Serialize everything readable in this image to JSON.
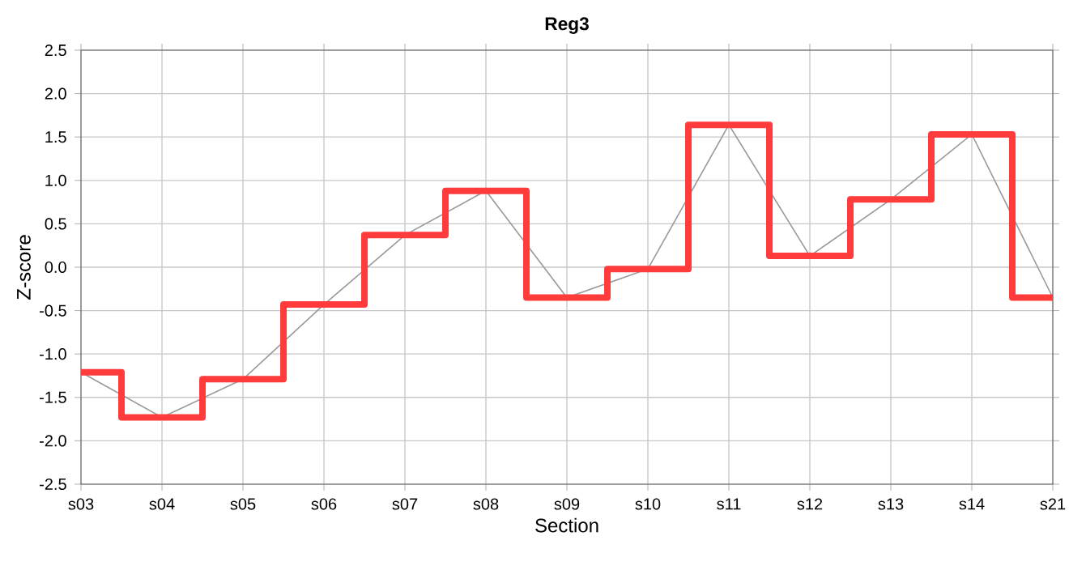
{
  "chart_data": {
    "type": "line",
    "title": "Reg3",
    "xlabel": "Section",
    "ylabel": "Z-score",
    "categories": [
      "s03",
      "s04",
      "s05",
      "s06",
      "s07",
      "s08",
      "s09",
      "s10",
      "s11",
      "s12",
      "s13",
      "s14",
      "s21"
    ],
    "series": [
      {
        "color": "#999999",
        "values": [
          -1.21,
          -1.73,
          -1.29,
          -0.43,
          0.37,
          0.88,
          -0.35,
          -0.02,
          1.64,
          0.13,
          0.78,
          1.53,
          -0.35
        ]
      },
      {
        "type": "step",
        "color": "#ff3b3b",
        "values": [
          -1.21,
          -1.73,
          -1.29,
          -0.43,
          0.37,
          0.88,
          -0.35,
          -0.02,
          1.64,
          0.13,
          0.78,
          1.53,
          -0.35
        ]
      }
    ],
    "ylim": [
      -2.5,
      2.5
    ],
    "yticks": [
      {
        "value": -2.5,
        "label": "-2.5"
      },
      {
        "value": -2,
        "label": "-2.0"
      },
      {
        "value": -1.5,
        "label": "-1.5"
      },
      {
        "value": -1,
        "label": "-1.0"
      },
      {
        "value": -0.5,
        "label": "-0.5"
      },
      {
        "value": 0,
        "label": "0.0"
      },
      {
        "value": 0.5,
        "label": "0.5"
      },
      {
        "value": 1,
        "label": "1.0"
      },
      {
        "value": 1.5,
        "label": "1.5"
      },
      {
        "value": 2,
        "label": "2.0"
      },
      {
        "value": 2.5,
        "label": "2.5"
      }
    ],
    "grid": true
  }
}
